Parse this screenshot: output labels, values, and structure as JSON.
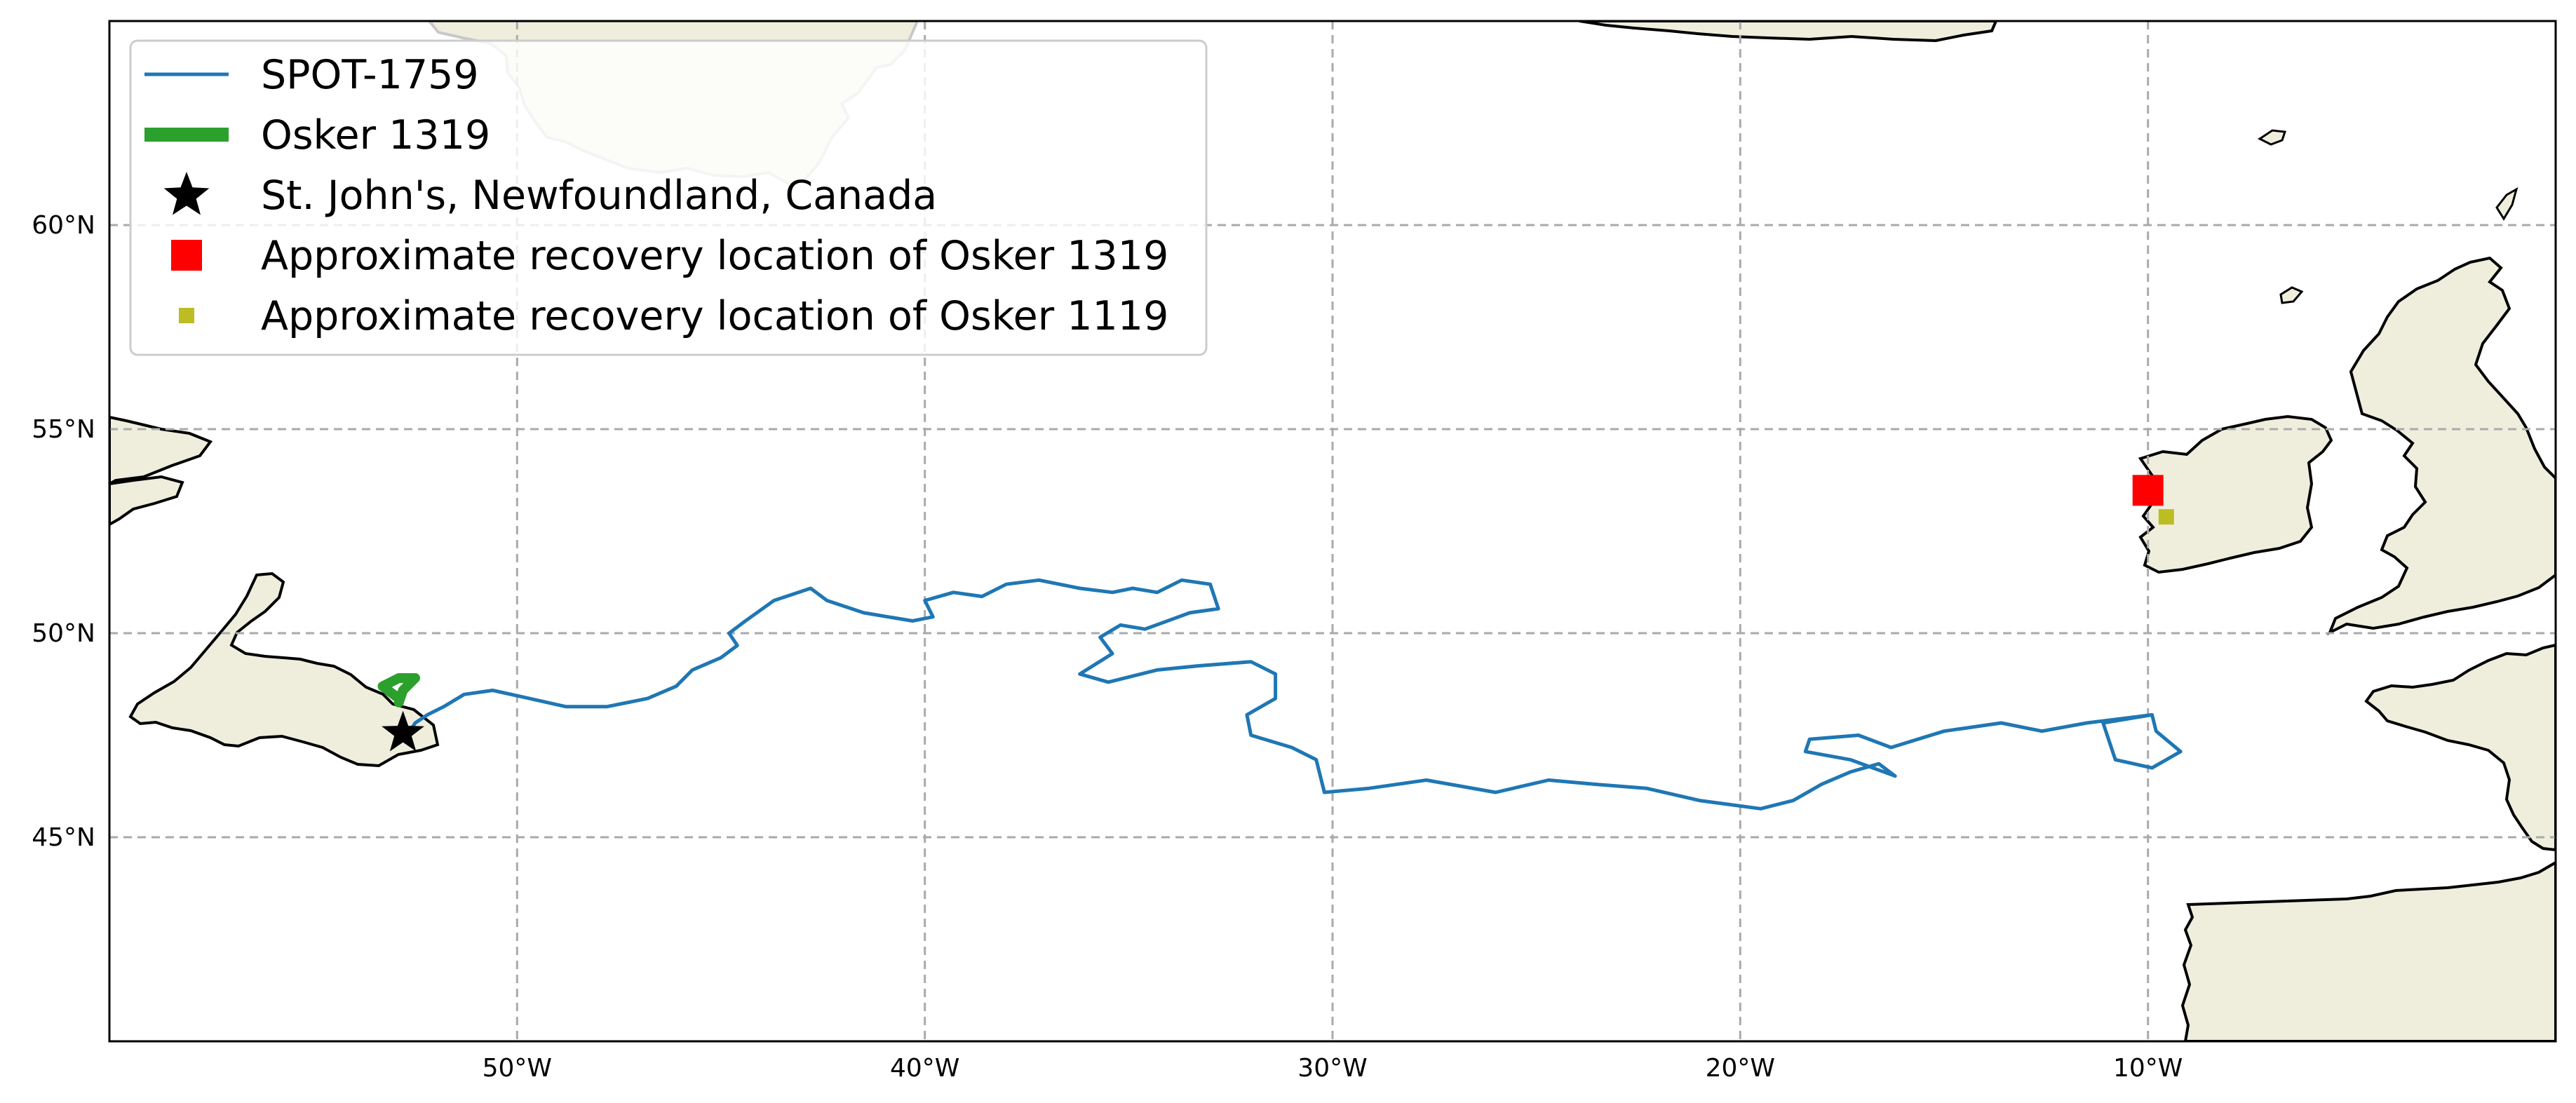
{
  "map": {
    "projection": "PlateCarree",
    "extent": {
      "lon": [
        -60,
        0
      ],
      "lat": [
        40,
        65
      ]
    },
    "colors": {
      "land": "#efeedd",
      "coastline": "#000000",
      "greenland_coastline": "#c8c8c8",
      "gridline": "#aaaaaa",
      "background": "#ffffff"
    },
    "gridlines": {
      "lon": [
        -50,
        -40,
        -30,
        -20,
        -10
      ],
      "lat": [
        45,
        50,
        55,
        60
      ],
      "style": "dashed"
    },
    "tick_labels": {
      "lon": [
        "50°W",
        "40°W",
        "30°W",
        "20°W",
        "10°W"
      ],
      "lat": [
        "45°N",
        "50°N",
        "55°N",
        "60°N"
      ]
    },
    "legend": {
      "placement": "upper-left",
      "entries": [
        {
          "label": "SPOT-1759",
          "marker": "line",
          "color": "#1f77b4"
        },
        {
          "label": "Osker 1319",
          "marker": "thick-line",
          "color": "#2ca02c"
        },
        {
          "label": "St. John's, Newfoundland, Canada",
          "marker": "star",
          "color": "#000000"
        },
        {
          "label": "Approximate recovery location of Osker 1319",
          "marker": "square",
          "color": "#ff0000"
        },
        {
          "label": "Approximate recovery location of Osker 1119",
          "marker": "small-square",
          "color": "#bcbd22"
        }
      ]
    },
    "tracks": [
      {
        "name": "SPOT-1759",
        "color": "#1f77b4",
        "points": [
          [
            -52.7,
            47.5
          ],
          [
            -52.5,
            47.8
          ],
          [
            -52.2,
            48.0
          ],
          [
            -51.8,
            48.2
          ],
          [
            -51.3,
            48.5
          ],
          [
            -50.6,
            48.6
          ],
          [
            -49.7,
            48.4
          ],
          [
            -48.8,
            48.2
          ],
          [
            -47.8,
            48.2
          ],
          [
            -46.8,
            48.4
          ],
          [
            -46.1,
            48.7
          ],
          [
            -45.7,
            49.1
          ],
          [
            -45.0,
            49.4
          ],
          [
            -44.6,
            49.7
          ],
          [
            -44.8,
            50.0
          ],
          [
            -44.4,
            50.3
          ],
          [
            -43.7,
            50.8
          ],
          [
            -42.8,
            51.1
          ],
          [
            -42.4,
            50.8
          ],
          [
            -41.5,
            50.5
          ],
          [
            -40.3,
            50.3
          ],
          [
            -39.8,
            50.4
          ],
          [
            -40.0,
            50.8
          ],
          [
            -39.3,
            51.0
          ],
          [
            -38.6,
            50.9
          ],
          [
            -38.0,
            51.2
          ],
          [
            -37.2,
            51.3
          ],
          [
            -36.2,
            51.1
          ],
          [
            -35.4,
            51.0
          ],
          [
            -34.9,
            51.1
          ],
          [
            -34.3,
            51.0
          ],
          [
            -33.7,
            51.3
          ],
          [
            -33.0,
            51.2
          ],
          [
            -32.8,
            50.6
          ],
          [
            -33.5,
            50.5
          ],
          [
            -34.6,
            50.1
          ],
          [
            -35.2,
            50.2
          ],
          [
            -35.7,
            49.9
          ],
          [
            -35.4,
            49.5
          ],
          [
            -36.2,
            49.0
          ],
          [
            -35.5,
            48.8
          ],
          [
            -34.3,
            49.1
          ],
          [
            -33.3,
            49.2
          ],
          [
            -32.0,
            49.3
          ],
          [
            -31.4,
            49.0
          ],
          [
            -31.4,
            48.4
          ],
          [
            -32.1,
            48.0
          ],
          [
            -32.0,
            47.5
          ],
          [
            -31.0,
            47.2
          ],
          [
            -30.4,
            46.9
          ],
          [
            -30.2,
            46.1
          ],
          [
            -29.1,
            46.2
          ],
          [
            -27.7,
            46.4
          ],
          [
            -26.0,
            46.1
          ],
          [
            -24.7,
            46.4
          ],
          [
            -23.6,
            46.3
          ],
          [
            -22.3,
            46.2
          ],
          [
            -21.0,
            45.9
          ],
          [
            -19.5,
            45.7
          ],
          [
            -18.7,
            45.9
          ],
          [
            -18.0,
            46.3
          ],
          [
            -17.3,
            46.6
          ],
          [
            -16.6,
            46.8
          ],
          [
            -16.2,
            46.5
          ],
          [
            -17.3,
            46.9
          ],
          [
            -18.4,
            47.1
          ],
          [
            -18.3,
            47.4
          ],
          [
            -17.1,
            47.5
          ],
          [
            -16.3,
            47.2
          ],
          [
            -15.0,
            47.6
          ],
          [
            -13.6,
            47.8
          ],
          [
            -12.6,
            47.6
          ],
          [
            -11.5,
            47.8
          ],
          [
            -10.7,
            47.9
          ],
          [
            -9.9,
            48.0
          ],
          [
            -9.8,
            47.6
          ],
          [
            -9.2,
            47.1
          ],
          [
            -9.9,
            46.7
          ],
          [
            -10.8,
            46.9
          ],
          [
            -11.1,
            47.8
          ],
          [
            -9.9,
            48.0
          ]
        ]
      },
      {
        "name": "Osker 1319",
        "color": "#2ca02c",
        "points": [
          [
            -52.9,
            48.4
          ],
          [
            -53.3,
            48.7
          ],
          [
            -52.9,
            48.9
          ],
          [
            -52.5,
            48.9
          ],
          [
            -52.8,
            48.6
          ],
          [
            -52.9,
            48.3
          ]
        ]
      }
    ],
    "markers": [
      {
        "name": "St. John's, Newfoundland, Canada",
        "lon": -52.8,
        "lat": 47.55,
        "shape": "star",
        "color": "#000000"
      },
      {
        "name": "Approximate recovery location of Osker 1319",
        "lon": -10.0,
        "lat": 53.5,
        "shape": "square",
        "color": "#ff0000"
      },
      {
        "name": "Approximate recovery location of Osker 1119",
        "lon": -9.55,
        "lat": 52.85,
        "shape": "small-square",
        "color": "#bcbd22"
      }
    ]
  }
}
